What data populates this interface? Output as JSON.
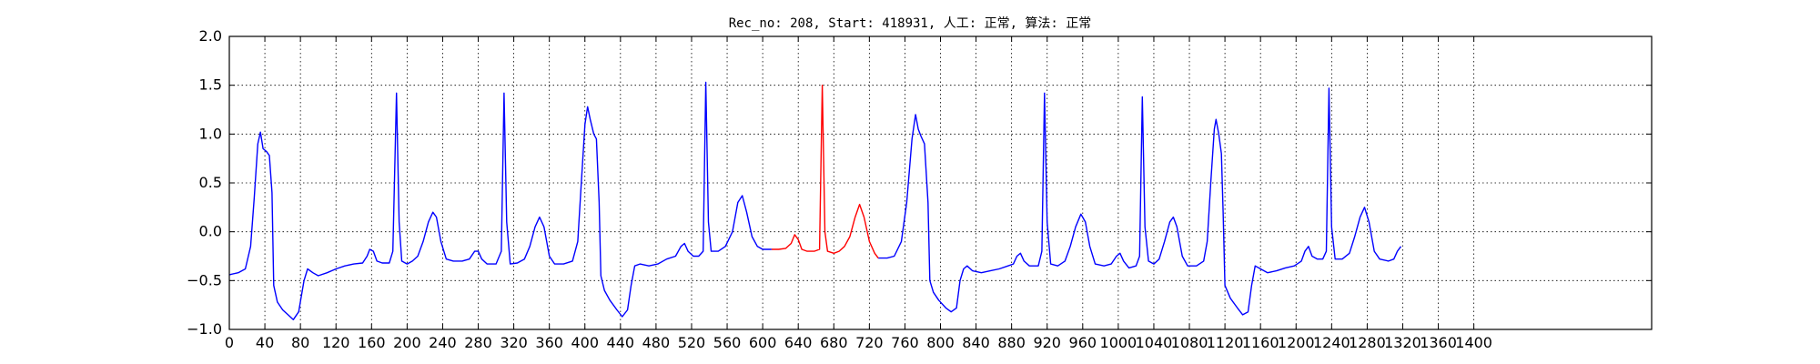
{
  "chart_data": {
    "type": "line",
    "title": "Rec_no: 208, Start: 418931, 人工: 正常, 算法: 正常",
    "xlabel": "",
    "ylabel": "",
    "xlim": [
      0,
      1600
    ],
    "ylim": [
      -1.0,
      2.0
    ],
    "grid": true,
    "grid_style": "dotted",
    "x_ticks": [
      0,
      40,
      80,
      120,
      160,
      200,
      240,
      280,
      320,
      360,
      400,
      440,
      480,
      520,
      560,
      600,
      640,
      680,
      720,
      760,
      800,
      840,
      880,
      920,
      960,
      1000,
      1040,
      1080,
      1120,
      1160,
      1200,
      1240,
      1280,
      1320,
      1360,
      1400
    ],
    "y_ticks": [
      -1.0,
      -0.5,
      0.0,
      0.5,
      1.0,
      1.5,
      2.0
    ],
    "y_tick_labels": [
      "−1.0",
      "−0.5",
      "0.0",
      "0.5",
      "1.0",
      "1.5",
      "2.0"
    ],
    "series": [
      {
        "color": "#0000ff",
        "segments": [
          [
            [
              0,
              -0.44
            ],
            [
              10,
              -0.42
            ],
            [
              18,
              -0.38
            ],
            [
              24,
              -0.15
            ],
            [
              28,
              0.35
            ],
            [
              32,
              0.9
            ],
            [
              35,
              1.02
            ],
            [
              38,
              0.85
            ],
            [
              42,
              0.82
            ],
            [
              45,
              0.78
            ],
            [
              48,
              0.4
            ],
            [
              50,
              -0.55
            ],
            [
              54,
              -0.72
            ],
            [
              60,
              -0.8
            ],
            [
              66,
              -0.85
            ],
            [
              72,
              -0.9
            ],
            [
              78,
              -0.82
            ],
            [
              84,
              -0.5
            ],
            [
              88,
              -0.38
            ],
            [
              94,
              -0.42
            ],
            [
              100,
              -0.45
            ],
            [
              110,
              -0.42
            ],
            [
              120,
              -0.38
            ],
            [
              130,
              -0.35
            ],
            [
              140,
              -0.33
            ],
            [
              150,
              -0.32
            ],
            [
              155,
              -0.25
            ],
            [
              158,
              -0.18
            ],
            [
              162,
              -0.2
            ],
            [
              166,
              -0.3
            ],
            [
              172,
              -0.32
            ],
            [
              180,
              -0.32
            ],
            [
              184,
              -0.2
            ],
            [
              188,
              1.42
            ],
            [
              191,
              0.1
            ],
            [
              194,
              -0.3
            ],
            [
              200,
              -0.33
            ],
            [
              206,
              -0.3
            ],
            [
              212,
              -0.25
            ],
            [
              218,
              -0.1
            ],
            [
              224,
              0.1
            ],
            [
              229,
              0.2
            ],
            [
              233,
              0.15
            ],
            [
              238,
              -0.1
            ],
            [
              244,
              -0.28
            ],
            [
              252,
              -0.3
            ],
            [
              262,
              -0.3
            ],
            [
              270,
              -0.28
            ],
            [
              276,
              -0.2
            ],
            [
              280,
              -0.2
            ],
            [
              284,
              -0.28
            ],
            [
              290,
              -0.33
            ],
            [
              300,
              -0.33
            ],
            [
              306,
              -0.2
            ],
            [
              309,
              1.42
            ],
            [
              312,
              0.1
            ],
            [
              316,
              -0.33
            ],
            [
              324,
              -0.32
            ],
            [
              332,
              -0.28
            ],
            [
              338,
              -0.15
            ],
            [
              344,
              0.05
            ],
            [
              349,
              0.15
            ],
            [
              354,
              0.05
            ],
            [
              360,
              -0.25
            ],
            [
              366,
              -0.33
            ],
            [
              376,
              -0.33
            ],
            [
              386,
              -0.3
            ],
            [
              392,
              -0.1
            ],
            [
              396,
              0.5
            ],
            [
              400,
              1.1
            ],
            [
              403,
              1.28
            ],
            [
              406,
              1.15
            ],
            [
              410,
              1.0
            ],
            [
              413,
              0.95
            ],
            [
              416,
              0.3
            ],
            [
              418,
              -0.45
            ],
            [
              422,
              -0.6
            ],
            [
              428,
              -0.7
            ],
            [
              436,
              -0.8
            ],
            [
              442,
              -0.87
            ],
            [
              448,
              -0.8
            ],
            [
              452,
              -0.55
            ],
            [
              456,
              -0.35
            ],
            [
              462,
              -0.33
            ],
            [
              472,
              -0.35
            ],
            [
              482,
              -0.33
            ],
            [
              492,
              -0.28
            ],
            [
              502,
              -0.25
            ],
            [
              508,
              -0.15
            ],
            [
              512,
              -0.12
            ],
            [
              516,
              -0.2
            ],
            [
              522,
              -0.25
            ],
            [
              528,
              -0.25
            ],
            [
              533,
              -0.2
            ],
            [
              536,
              1.53
            ],
            [
              539,
              0.1
            ],
            [
              542,
              -0.2
            ],
            [
              550,
              -0.2
            ],
            [
              558,
              -0.15
            ],
            [
              566,
              0.0
            ],
            [
              572,
              0.3
            ],
            [
              577,
              0.37
            ],
            [
              582,
              0.2
            ],
            [
              588,
              -0.05
            ],
            [
              594,
              -0.15
            ],
            [
              600,
              -0.18
            ],
            [
              610,
              -0.18
            ]
          ],
          [
            [
              730,
              -0.27
            ],
            [
              740,
              -0.27
            ],
            [
              748,
              -0.25
            ],
            [
              756,
              -0.1
            ],
            [
              762,
              0.3
            ],
            [
              768,
              0.95
            ],
            [
              772,
              1.2
            ],
            [
              775,
              1.05
            ],
            [
              778,
              0.98
            ],
            [
              782,
              0.9
            ],
            [
              786,
              0.3
            ],
            [
              788,
              -0.5
            ],
            [
              792,
              -0.62
            ],
            [
              798,
              -0.7
            ],
            [
              806,
              -0.78
            ],
            [
              812,
              -0.82
            ],
            [
              818,
              -0.78
            ],
            [
              822,
              -0.5
            ],
            [
              826,
              -0.38
            ],
            [
              830,
              -0.35
            ],
            [
              836,
              -0.4
            ],
            [
              846,
              -0.42
            ],
            [
              856,
              -0.4
            ],
            [
              866,
              -0.38
            ],
            [
              876,
              -0.35
            ],
            [
              882,
              -0.33
            ],
            [
              886,
              -0.25
            ],
            [
              890,
              -0.22
            ],
            [
              894,
              -0.3
            ],
            [
              900,
              -0.35
            ],
            [
              910,
              -0.35
            ],
            [
              914,
              -0.2
            ],
            [
              917,
              1.42
            ],
            [
              920,
              0.1
            ],
            [
              924,
              -0.33
            ],
            [
              932,
              -0.35
            ],
            [
              940,
              -0.3
            ],
            [
              946,
              -0.15
            ],
            [
              952,
              0.05
            ],
            [
              958,
              0.18
            ],
            [
              963,
              0.1
            ],
            [
              968,
              -0.15
            ],
            [
              974,
              -0.33
            ],
            [
              984,
              -0.35
            ],
            [
              992,
              -0.33
            ],
            [
              998,
              -0.25
            ],
            [
              1002,
              -0.22
            ],
            [
              1006,
              -0.3
            ],
            [
              1012,
              -0.37
            ],
            [
              1020,
              -0.35
            ],
            [
              1024,
              -0.25
            ],
            [
              1027,
              1.38
            ],
            [
              1030,
              0.05
            ],
            [
              1034,
              -0.3
            ],
            [
              1040,
              -0.33
            ],
            [
              1046,
              -0.28
            ],
            [
              1052,
              -0.1
            ],
            [
              1058,
              0.1
            ],
            [
              1062,
              0.15
            ],
            [
              1066,
              0.05
            ],
            [
              1072,
              -0.25
            ],
            [
              1078,
              -0.35
            ],
            [
              1088,
              -0.35
            ],
            [
              1096,
              -0.3
            ],
            [
              1100,
              -0.1
            ],
            [
              1104,
              0.5
            ],
            [
              1108,
              1.05
            ],
            [
              1110,
              1.15
            ],
            [
              1113,
              1.0
            ],
            [
              1116,
              0.8
            ],
            [
              1118,
              0.2
            ],
            [
              1120,
              -0.55
            ],
            [
              1126,
              -0.68
            ],
            [
              1134,
              -0.78
            ],
            [
              1140,
              -0.85
            ],
            [
              1146,
              -0.82
            ],
            [
              1150,
              -0.55
            ],
            [
              1154,
              -0.35
            ],
            [
              1160,
              -0.38
            ],
            [
              1168,
              -0.42
            ],
            [
              1178,
              -0.4
            ],
            [
              1188,
              -0.37
            ],
            [
              1198,
              -0.35
            ],
            [
              1206,
              -0.3
            ],
            [
              1210,
              -0.2
            ],
            [
              1214,
              -0.15
            ],
            [
              1218,
              -0.25
            ],
            [
              1224,
              -0.28
            ],
            [
              1230,
              -0.28
            ],
            [
              1234,
              -0.2
            ],
            [
              1237,
              1.47
            ],
            [
              1240,
              0.05
            ],
            [
              1244,
              -0.28
            ],
            [
              1252,
              -0.28
            ],
            [
              1260,
              -0.22
            ],
            [
              1266,
              -0.05
            ],
            [
              1272,
              0.15
            ],
            [
              1277,
              0.25
            ],
            [
              1282,
              0.1
            ],
            [
              1288,
              -0.2
            ],
            [
              1294,
              -0.28
            ],
            [
              1304,
              -0.3
            ],
            [
              1310,
              -0.28
            ],
            [
              1314,
              -0.2
            ],
            [
              1318,
              -0.15
            ]
          ]
        ]
      },
      {
        "color": "#ff0000",
        "segments": [
          [
            [
              610,
              -0.18
            ],
            [
              618,
              -0.18
            ],
            [
              626,
              -0.17
            ],
            [
              632,
              -0.12
            ],
            [
              636,
              -0.03
            ],
            [
              640,
              -0.08
            ],
            [
              644,
              -0.18
            ],
            [
              650,
              -0.2
            ],
            [
              658,
              -0.2
            ],
            [
              664,
              -0.18
            ],
            [
              667,
              1.5
            ],
            [
              670,
              0.0
            ],
            [
              673,
              -0.2
            ],
            [
              680,
              -0.22
            ],
            [
              686,
              -0.2
            ],
            [
              692,
              -0.15
            ],
            [
              698,
              -0.05
            ],
            [
              704,
              0.15
            ],
            [
              709,
              0.28
            ],
            [
              714,
              0.15
            ],
            [
              720,
              -0.1
            ],
            [
              726,
              -0.22
            ],
            [
              730,
              -0.27
            ]
          ]
        ]
      }
    ]
  }
}
